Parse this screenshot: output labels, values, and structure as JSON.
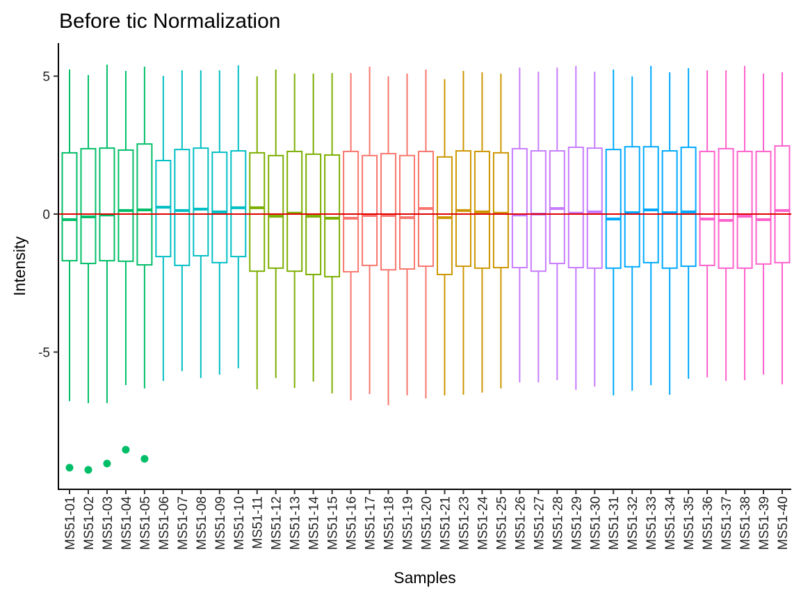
{
  "chart_data": {
    "type": "boxplot",
    "title": "Before tic Normalization",
    "xlabel": "Samples",
    "ylabel": "Intensity",
    "ylim": [
      -10,
      6.2
    ],
    "yticks": [
      -5,
      0,
      5
    ],
    "ytick_labels": [
      "-5",
      "0",
      "5"
    ],
    "reference_line": {
      "y": 0,
      "color": "#E00000"
    },
    "grid": false,
    "group_colors": [
      "#00BE67",
      "#00BFC4",
      "#7CAE00",
      "#F8766D",
      "#CD9600",
      "#C77CFF",
      "#00A9FF",
      "#FF61CC"
    ],
    "samples": [
      {
        "name": "MS51-01",
        "group": 0,
        "whisker_high": 5.24,
        "q3": 2.22,
        "median": -0.2,
        "q1": -1.69,
        "whisker_low": -6.78,
        "outliers": [
          -9.19
        ]
      },
      {
        "name": "MS51-02",
        "group": 0,
        "whisker_high": 5.04,
        "q3": 2.37,
        "median": -0.1,
        "q1": -1.79,
        "whisker_low": -6.85,
        "outliers": [
          -9.27
        ]
      },
      {
        "name": "MS51-03",
        "group": 0,
        "whisker_high": 5.42,
        "q3": 2.39,
        "median": -0.03,
        "q1": -1.69,
        "whisker_low": -6.85,
        "outliers": [
          -9.04
        ]
      },
      {
        "name": "MS51-04",
        "group": 0,
        "whisker_high": 5.19,
        "q3": 2.32,
        "median": 0.13,
        "q1": -1.71,
        "whisker_low": -6.2,
        "outliers": [
          -8.54
        ]
      },
      {
        "name": "MS51-05",
        "group": 0,
        "whisker_high": 5.34,
        "q3": 2.54,
        "median": 0.15,
        "q1": -1.84,
        "whisker_low": -6.32,
        "outliers": [
          -8.87
        ]
      },
      {
        "name": "MS51-06",
        "group": 1,
        "whisker_high": 5.01,
        "q3": 1.94,
        "median": 0.25,
        "q1": -1.54,
        "whisker_low": -6.05,
        "outliers": []
      },
      {
        "name": "MS51-07",
        "group": 1,
        "whisker_high": 5.21,
        "q3": 2.34,
        "median": 0.13,
        "q1": -1.86,
        "whisker_low": -5.69,
        "outliers": []
      },
      {
        "name": "MS51-08",
        "group": 1,
        "whisker_high": 5.21,
        "q3": 2.39,
        "median": 0.18,
        "q1": -1.51,
        "whisker_low": -5.94,
        "outliers": []
      },
      {
        "name": "MS51-09",
        "group": 1,
        "whisker_high": 5.21,
        "q3": 2.24,
        "median": 0.08,
        "q1": -1.76,
        "whisker_low": -5.82,
        "outliers": []
      },
      {
        "name": "MS51-10",
        "group": 1,
        "whisker_high": 5.39,
        "q3": 2.29,
        "median": 0.23,
        "q1": -1.54,
        "whisker_low": -5.59,
        "outliers": []
      },
      {
        "name": "MS51-11",
        "group": 2,
        "whisker_high": 4.99,
        "q3": 2.22,
        "median": 0.23,
        "q1": -2.07,
        "whisker_low": -6.35,
        "outliers": []
      },
      {
        "name": "MS51-12",
        "group": 2,
        "whisker_high": 5.24,
        "q3": 2.12,
        "median": -0.08,
        "q1": -1.96,
        "whisker_low": -5.94,
        "outliers": []
      },
      {
        "name": "MS51-13",
        "group": 2,
        "whisker_high": 5.09,
        "q3": 2.27,
        "median": 0.03,
        "q1": -2.07,
        "whisker_low": -6.3,
        "outliers": []
      },
      {
        "name": "MS51-14",
        "group": 2,
        "whisker_high": 5.09,
        "q3": 2.17,
        "median": -0.08,
        "q1": -2.19,
        "whisker_low": -6.07,
        "outliers": []
      },
      {
        "name": "MS51-15",
        "group": 2,
        "whisker_high": 5.11,
        "q3": 2.14,
        "median": -0.15,
        "q1": -2.27,
        "whisker_low": -6.5,
        "outliers": []
      },
      {
        "name": "MS51-16",
        "group": 3,
        "whisker_high": 5.11,
        "q3": 2.27,
        "median": -0.15,
        "q1": -2.09,
        "whisker_low": -6.75,
        "outliers": []
      },
      {
        "name": "MS51-17",
        "group": 3,
        "whisker_high": 5.34,
        "q3": 2.12,
        "median": -0.05,
        "q1": -1.86,
        "whisker_low": -6.52,
        "outliers": []
      },
      {
        "name": "MS51-18",
        "group": 3,
        "whisker_high": 4.99,
        "q3": 2.19,
        "median": -0.05,
        "q1": -2.02,
        "whisker_low": -6.93,
        "outliers": []
      },
      {
        "name": "MS51-19",
        "group": 3,
        "whisker_high": 5.09,
        "q3": 2.12,
        "median": -0.13,
        "q1": -1.99,
        "whisker_low": -6.57,
        "outliers": []
      },
      {
        "name": "MS51-20",
        "group": 3,
        "whisker_high": 5.24,
        "q3": 2.27,
        "median": 0.2,
        "q1": -1.89,
        "whisker_low": -6.68,
        "outliers": []
      },
      {
        "name": "MS51-21",
        "group": 4,
        "whisker_high": 4.89,
        "q3": 2.07,
        "median": -0.13,
        "q1": -2.19,
        "whisker_low": -6.57,
        "outliers": []
      },
      {
        "name": "MS51-23",
        "group": 4,
        "whisker_high": 5.19,
        "q3": 2.29,
        "median": 0.13,
        "q1": -1.89,
        "whisker_low": -6.55,
        "outliers": []
      },
      {
        "name": "MS51-24",
        "group": 4,
        "whisker_high": 5.14,
        "q3": 2.27,
        "median": 0.08,
        "q1": -1.96,
        "whisker_low": -6.47,
        "outliers": []
      },
      {
        "name": "MS51-25",
        "group": 4,
        "whisker_high": 5.09,
        "q3": 2.22,
        "median": 0.03,
        "q1": -1.94,
        "whisker_low": -6.32,
        "outliers": []
      },
      {
        "name": "MS51-26",
        "group": 5,
        "whisker_high": 5.31,
        "q3": 2.37,
        "median": -0.03,
        "q1": -1.94,
        "whisker_low": -6.1,
        "outliers": []
      },
      {
        "name": "MS51-27",
        "group": 5,
        "whisker_high": 5.16,
        "q3": 2.29,
        "median": 0.0,
        "q1": -2.07,
        "whisker_low": -6.1,
        "outliers": []
      },
      {
        "name": "MS51-28",
        "group": 5,
        "whisker_high": 5.31,
        "q3": 2.29,
        "median": 0.2,
        "q1": -1.79,
        "whisker_low": -6.02,
        "outliers": []
      },
      {
        "name": "MS51-29",
        "group": 5,
        "whisker_high": 5.37,
        "q3": 2.42,
        "median": 0.03,
        "q1": -1.94,
        "whisker_low": -6.37,
        "outliers": []
      },
      {
        "name": "MS51-30",
        "group": 5,
        "whisker_high": 5.16,
        "q3": 2.39,
        "median": 0.08,
        "q1": -1.96,
        "whisker_low": -6.25,
        "outliers": []
      },
      {
        "name": "MS51-31",
        "group": 6,
        "whisker_high": 5.24,
        "q3": 2.34,
        "median": -0.18,
        "q1": -1.96,
        "whisker_low": -6.57,
        "outliers": []
      },
      {
        "name": "MS51-32",
        "group": 6,
        "whisker_high": 4.99,
        "q3": 2.44,
        "median": 0.05,
        "q1": -1.91,
        "whisker_low": -6.4,
        "outliers": []
      },
      {
        "name": "MS51-33",
        "group": 6,
        "whisker_high": 5.37,
        "q3": 2.44,
        "median": 0.15,
        "q1": -1.76,
        "whisker_low": -6.2,
        "outliers": []
      },
      {
        "name": "MS51-34",
        "group": 6,
        "whisker_high": 5.14,
        "q3": 2.29,
        "median": 0.05,
        "q1": -1.96,
        "whisker_low": -6.55,
        "outliers": []
      },
      {
        "name": "MS51-35",
        "group": 6,
        "whisker_high": 5.29,
        "q3": 2.42,
        "median": 0.08,
        "q1": -1.89,
        "whisker_low": -5.97,
        "outliers": []
      },
      {
        "name": "MS51-36",
        "group": 7,
        "whisker_high": 5.21,
        "q3": 2.27,
        "median": -0.18,
        "q1": -1.86,
        "whisker_low": -5.92,
        "outliers": []
      },
      {
        "name": "MS51-37",
        "group": 7,
        "whisker_high": 5.21,
        "q3": 2.37,
        "median": -0.23,
        "q1": -1.96,
        "whisker_low": -6.05,
        "outliers": []
      },
      {
        "name": "MS51-38",
        "group": 7,
        "whisker_high": 5.37,
        "q3": 2.27,
        "median": -0.08,
        "q1": -1.96,
        "whisker_low": -6.02,
        "outliers": []
      },
      {
        "name": "MS51-39",
        "group": 7,
        "whisker_high": 5.09,
        "q3": 2.27,
        "median": -0.2,
        "q1": -1.81,
        "whisker_low": -5.82,
        "outliers": []
      },
      {
        "name": "MS51-40",
        "group": 7,
        "whisker_high": 5.14,
        "q3": 2.47,
        "median": 0.13,
        "q1": -1.76,
        "whisker_low": -6.17,
        "outliers": []
      }
    ]
  }
}
